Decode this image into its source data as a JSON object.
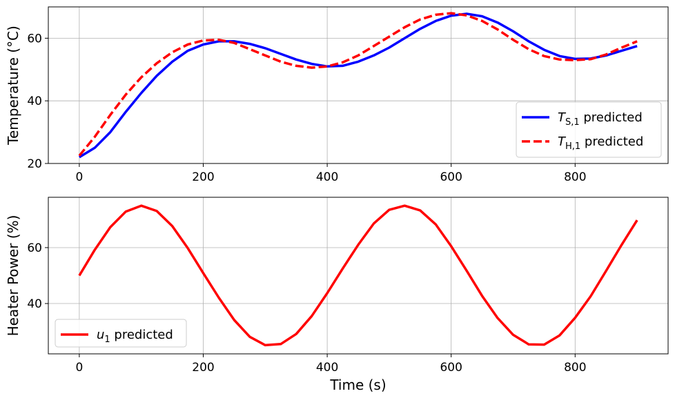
{
  "chart_data": [
    {
      "type": "line",
      "xlabel": "",
      "ylabel": "Temperature (°C)",
      "xlim": [
        -50,
        950
      ],
      "ylim": [
        20,
        70
      ],
      "x_ticks": [
        0,
        200,
        400,
        600,
        800
      ],
      "y_ticks": [
        20,
        40,
        60
      ],
      "grid": true,
      "legend": "lower-right",
      "series": [
        {
          "name": "T_S,1 predicted",
          "legend_main": "T",
          "legend_sub": "S,1",
          "legend_suffix": " predicted",
          "color": "#0000ff",
          "style": "solid",
          "x": [
            0,
            25,
            50,
            75,
            100,
            125,
            150,
            175,
            200,
            225,
            250,
            275,
            300,
            325,
            350,
            375,
            400,
            425,
            450,
            475,
            500,
            525,
            550,
            575,
            600,
            625,
            650,
            675,
            700,
            725,
            750,
            775,
            800,
            825,
            850,
            875,
            900
          ],
          "y": [
            22,
            25,
            30,
            36.5,
            42.5,
            48,
            52.5,
            56,
            58,
            59,
            59,
            58.2,
            56.8,
            55,
            53.2,
            51.8,
            51,
            51.2,
            52.5,
            54.5,
            57,
            60,
            63,
            65.5,
            67.2,
            67.8,
            67,
            65,
            62.2,
            59,
            56.3,
            54.3,
            53.4,
            53.5,
            54.5,
            56,
            57.5
          ]
        },
        {
          "name": "T_H,1 predicted",
          "legend_main": "T",
          "legend_sub": "H,1",
          "legend_suffix": " predicted",
          "color": "#ff0000",
          "style": "dashed",
          "x": [
            0,
            25,
            50,
            75,
            100,
            125,
            150,
            175,
            200,
            225,
            250,
            275,
            300,
            325,
            350,
            375,
            400,
            425,
            450,
            475,
            500,
            525,
            550,
            575,
            600,
            625,
            650,
            675,
            700,
            725,
            750,
            775,
            800,
            825,
            850,
            875,
            900
          ],
          "y": [
            22.5,
            28.5,
            35.5,
            42,
            47.5,
            52,
            55.5,
            58,
            59.3,
            59.5,
            58.5,
            56.5,
            54.5,
            52.5,
            51.2,
            50.6,
            51,
            52.3,
            54.5,
            57.5,
            60.5,
            63.5,
            66,
            67.5,
            68,
            67.3,
            65.5,
            62.8,
            59.5,
            56.5,
            54.3,
            53.2,
            53,
            53.3,
            54.8,
            57,
            59
          ]
        }
      ]
    },
    {
      "type": "line",
      "xlabel": "Time (s)",
      "ylabel": "Heater Power (%)",
      "xlim": [
        -50,
        950
      ],
      "ylim": [
        22,
        78
      ],
      "x_ticks": [
        0,
        200,
        400,
        600,
        800
      ],
      "y_ticks": [
        40,
        60
      ],
      "grid": true,
      "legend": "lower-left",
      "series": [
        {
          "name": "u_1 predicted",
          "legend_main": "u",
          "legend_sub": "1",
          "legend_suffix": " predicted",
          "color": "#ff0000",
          "style": "solid",
          "x": [
            0,
            25,
            50,
            75,
            100,
            125,
            150,
            175,
            200,
            225,
            250,
            275,
            300,
            325,
            350,
            375,
            400,
            425,
            450,
            475,
            500,
            525,
            550,
            575,
            600,
            625,
            650,
            675,
            700,
            725,
            750,
            775,
            800,
            825,
            850,
            875,
            900
          ],
          "y": [
            50,
            59.2,
            67.3,
            72.9,
            75,
            73.1,
            67.7,
            59.8,
            50.9,
            42.1,
            34.1,
            28.1,
            25.1,
            25.5,
            29.1,
            35.5,
            43.7,
            52.5,
            61,
            68.6,
            73.5,
            75,
            73.3,
            68.3,
            60.5,
            51.7,
            42.7,
            34.8,
            28.8,
            25.4,
            25.3,
            28.6,
            34.9,
            42.6,
            51.7,
            61,
            69.8
          ]
        }
      ]
    }
  ]
}
